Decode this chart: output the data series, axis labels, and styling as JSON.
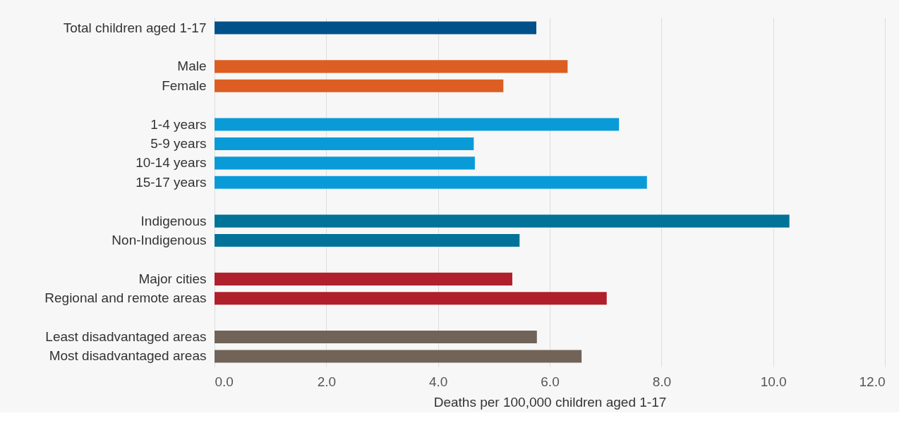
{
  "chart_data": {
    "type": "bar",
    "orientation": "horizontal",
    "xlabel": "Deaths per 100,000 children aged 1-17",
    "categories": [
      "Total children aged 1-17",
      null,
      "Male",
      "Female",
      null,
      "1-4 years",
      "5-9 years",
      "10-14 years",
      "15-17 years",
      null,
      "Indigenous",
      "Non-Indigenous",
      null,
      "Major cities",
      "Regional and remote areas",
      null,
      "Least disadvantaged areas",
      "Most disadvantaged areas"
    ],
    "values": [
      5.76,
      null,
      6.32,
      5.17,
      null,
      7.24,
      4.64,
      4.66,
      7.74,
      null,
      10.29,
      5.46,
      null,
      5.33,
      7.02,
      null,
      5.77,
      6.57
    ],
    "colors": [
      "#005189",
      null,
      "#dc5e22",
      "#dc5e22",
      null,
      "#099bd8",
      "#099bd8",
      "#099bd8",
      "#099bd8",
      null,
      "#017399",
      "#017399",
      null,
      "#b01f2c",
      "#b01f2c",
      null,
      "#716358",
      "#716358"
    ],
    "xlim": [
      0,
      12
    ],
    "xticks": [
      {
        "value": 0,
        "label": "0.0"
      },
      {
        "value": 2,
        "label": "2.0"
      },
      {
        "value": 4,
        "label": "4.0"
      },
      {
        "value": 6,
        "label": "6.0"
      },
      {
        "value": 8,
        "label": "8.0"
      },
      {
        "value": 10,
        "label": "10.0"
      },
      {
        "value": 12,
        "label": "12.0"
      }
    ],
    "grid": "x"
  }
}
